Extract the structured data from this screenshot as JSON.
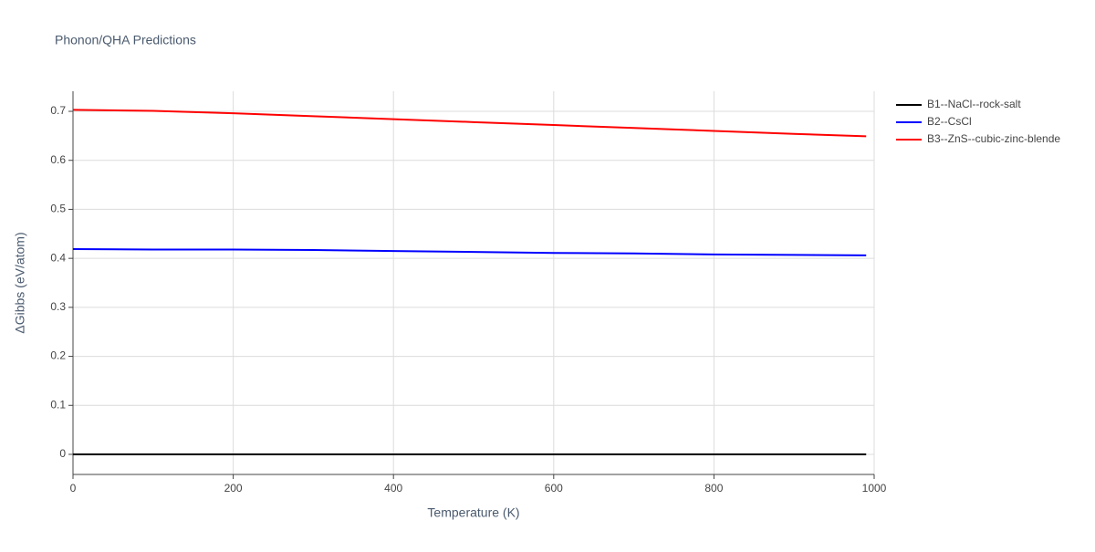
{
  "chart_data": {
    "type": "line",
    "title": "Phonon/QHA Predictions",
    "x_label": "Temperature (K)",
    "y_label": "ΔGibbs (eV/atom)",
    "x": [
      0,
      100,
      200,
      300,
      400,
      500,
      600,
      700,
      800,
      900,
      990
    ],
    "series": [
      {
        "name": "B1--NaCl--rock-salt",
        "color": "#000000",
        "values": [
          0,
          0,
          0,
          0,
          0,
          0,
          0,
          0,
          0,
          0,
          0
        ]
      },
      {
        "name": "B2--CsCl",
        "color": "#0000ff",
        "values": [
          0.419,
          0.418,
          0.418,
          0.417,
          0.415,
          0.413,
          0.411,
          0.41,
          0.408,
          0.407,
          0.406
        ]
      },
      {
        "name": "B3--ZnS--cubic-zinc-blende",
        "color": "#ff0000",
        "values": [
          0.703,
          0.701,
          0.696,
          0.69,
          0.684,
          0.678,
          0.672,
          0.666,
          0.66,
          0.654,
          0.649
        ]
      }
    ],
    "xlim": [
      0,
      1000
    ],
    "xticks": [
      0,
      200,
      400,
      600,
      800,
      1000
    ],
    "ylim": [
      -0.041,
      0.741
    ],
    "yticks": [
      0,
      0.1,
      0.2,
      0.3,
      0.4,
      0.5,
      0.6,
      0.7
    ],
    "grid": true,
    "legend": "outside-right"
  }
}
